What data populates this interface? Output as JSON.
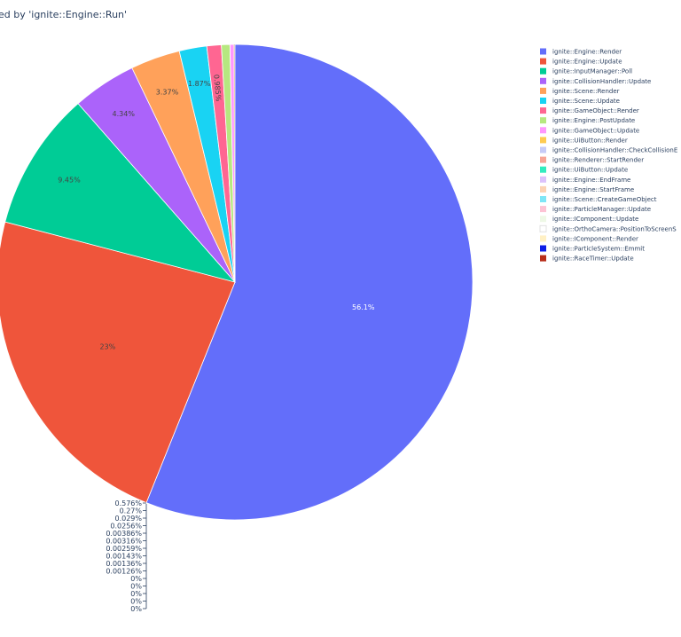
{
  "chart_data": {
    "type": "pie",
    "title": "ed by 'ignite::Engine::Run'",
    "slices": [
      {
        "name": "ignite::Engine::Render",
        "value": 56.1,
        "label": "56.1%",
        "color": "#636efa"
      },
      {
        "name": "ignite::Engine::Update",
        "value": 23,
        "label": "23%",
        "color": "#ef553b"
      },
      {
        "name": "ignite::InputManager::Poll",
        "value": 9.45,
        "label": "9.45%",
        "color": "#00cc96"
      },
      {
        "name": "ignite::CollisionHandler::Update",
        "value": 4.34,
        "label": "4.34%",
        "color": "#ab63fa"
      },
      {
        "name": "ignite::Scene::Render",
        "value": 3.37,
        "label": "3.37%",
        "color": "#ffa15a"
      },
      {
        "name": "ignite::Scene::Update",
        "value": 1.87,
        "label": "1.87%",
        "color": "#19d3f3"
      },
      {
        "name": "ignite::GameObject::Render",
        "value": 0.985,
        "label": "0.985%",
        "color": "#ff6692"
      },
      {
        "name": "ignite::Engine::PostUpdate",
        "value": 0.576,
        "label": "0.576%",
        "color": "#b6e880"
      },
      {
        "name": "ignite::GameObject::Update",
        "value": 0.27,
        "label": "0.27%",
        "color": "#ff97ff"
      },
      {
        "name": "ignite::UiButton::Render",
        "value": 0.029,
        "label": "0.029%",
        "color": "#fecb52"
      },
      {
        "name": "ignite::CollisionHandler::CheckCollisionE",
        "value": 0.0256,
        "label": "0.0256%",
        "color": "#c6cbf7"
      },
      {
        "name": "ignite::Renderer::StartRender",
        "value": 0.00386,
        "label": "0.00386%",
        "color": "#f7a596"
      },
      {
        "name": "ignite::UiButton::Update",
        "value": 0.00316,
        "label": "0.00316%",
        "color": "#33ecbf"
      },
      {
        "name": "ignite::Engine::EndFrame",
        "value": 0.00259,
        "label": "0.00259%",
        "color": "#dcc2fc"
      },
      {
        "name": "ignite::Engine::StartFrame",
        "value": 0.00143,
        "label": "0.00143%",
        "color": "#fcd3b4"
      },
      {
        "name": "ignite::Scene::CreateGameObject",
        "value": 0.00136,
        "label": "0.00136%",
        "color": "#7fe6f6"
      },
      {
        "name": "ignite::ParticleManager::Update",
        "value": 0.00126,
        "label": "0.00126%",
        "color": "#fdc3d4"
      },
      {
        "name": "ignite::IComponent::Update",
        "value": 0,
        "label": "0%",
        "color": "#eef8e6"
      },
      {
        "name": "ignite::OrthoCamera::PositionToScreenS",
        "value": 0,
        "label": "0%",
        "color": "#ffffff"
      },
      {
        "name": "ignite::IComponent::Render",
        "value": 0,
        "label": "0%",
        "color": "#fff0c4"
      },
      {
        "name": "ignite::ParticleSystem::Emmit",
        "value": 0,
        "label": "0%",
        "color": "#0d1ee6"
      },
      {
        "name": "ignite::RaceTimer::Update",
        "value": 0,
        "label": "0%",
        "color": "#b82e1a"
      }
    ]
  }
}
